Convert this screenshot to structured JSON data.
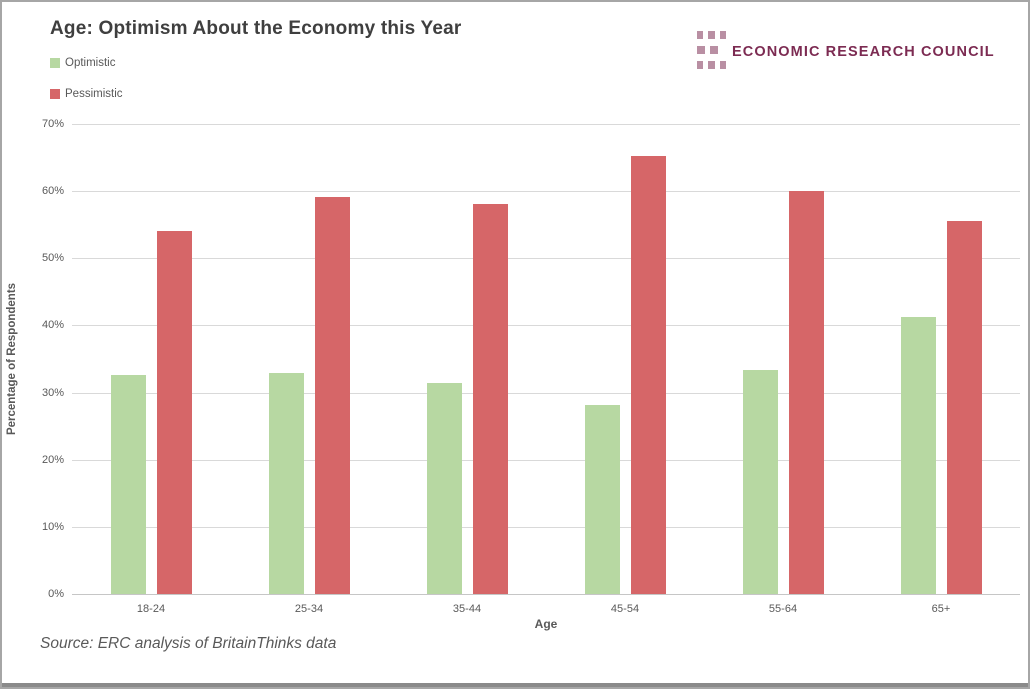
{
  "title": "Age: Optimism About the Economy this Year",
  "logo": {
    "text": "ECONOMIC RESEARCH COUNCIL",
    "square_color": "#b98fa3",
    "text_color": "#7c2b52"
  },
  "source": "Source: ERC analysis of BritainThinks data",
  "colors": {
    "optimistic": "#b7d8a2",
    "pessimistic": "#d66668",
    "title_text": "#3f3f3f",
    "axis_text": "#595959",
    "gridline": "#d9d9d9",
    "frame_border": "#a6a6a6",
    "bottom_strip": "#8a8a8a"
  },
  "chart_data": {
    "type": "bar",
    "title": "Age: Optimism About the Economy this Year",
    "categories": [
      "18-24",
      "25-34",
      "35-44",
      "45-54",
      "55-64",
      "65+"
    ],
    "series": [
      {
        "name": "Optimistic",
        "color": "#b7d8a2",
        "values": [
          32.6,
          32.9,
          31.4,
          28.1,
          33.3,
          41.2
        ]
      },
      {
        "name": "Pessimistic",
        "color": "#d66668",
        "values": [
          54.0,
          59.2,
          58.1,
          65.3,
          60.0,
          55.5
        ]
      }
    ],
    "xlabel": "Age",
    "ylabel": "Percentage of Respondents",
    "ylim": [
      0,
      70
    ],
    "ytick_step": 10,
    "ytick_suffix": "%",
    "grid": true,
    "legend_position": "top-left"
  }
}
